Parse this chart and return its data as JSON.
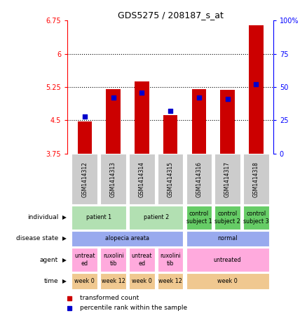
{
  "title": "GDS5275 / 208187_s_at",
  "samples": [
    "GSM1414312",
    "GSM1414313",
    "GSM1414314",
    "GSM1414315",
    "GSM1414316",
    "GSM1414317",
    "GSM1414318"
  ],
  "transformed_count": [
    4.47,
    5.21,
    5.38,
    4.62,
    5.21,
    5.19,
    6.65
  ],
  "percentile_rank": [
    28,
    42,
    46,
    32,
    42,
    41,
    52
  ],
  "ylim_left": [
    3.75,
    6.75
  ],
  "ylim_right": [
    0,
    100
  ],
  "yticks_left": [
    3.75,
    4.5,
    5.25,
    6.0,
    6.75
  ],
  "yticks_right": [
    0,
    25,
    50,
    75,
    100
  ],
  "ytick_labels_left": [
    "3.75",
    "4.5",
    "5.25",
    "6",
    "6.75"
  ],
  "ytick_labels_right": [
    "0",
    "25",
    "50",
    "75",
    "100%"
  ],
  "bar_color": "#cc0000",
  "blue_color": "#0000cc",
  "bar_bottom": 3.75,
  "dotted_ticks": [
    4.5,
    5.25,
    6.0
  ],
  "annotations": {
    "individual": {
      "label": "individual",
      "groups": [
        {
          "text": "patient 1",
          "cols": [
            0,
            1
          ],
          "color": "#b2e0b2"
        },
        {
          "text": "patient 2",
          "cols": [
            2,
            3
          ],
          "color": "#b2e0b2"
        },
        {
          "text": "control\nsubject 1",
          "cols": [
            4
          ],
          "color": "#66cc66"
        },
        {
          "text": "control\nsubject 2",
          "cols": [
            5
          ],
          "color": "#66cc66"
        },
        {
          "text": "control\nsubject 3",
          "cols": [
            6
          ],
          "color": "#66cc66"
        }
      ]
    },
    "disease_state": {
      "label": "disease state",
      "groups": [
        {
          "text": "alopecia areata",
          "cols": [
            0,
            1,
            2,
            3
          ],
          "color": "#99aaee"
        },
        {
          "text": "normal",
          "cols": [
            4,
            5,
            6
          ],
          "color": "#99aaee"
        }
      ]
    },
    "agent": {
      "label": "agent",
      "groups": [
        {
          "text": "untreat\ned",
          "cols": [
            0
          ],
          "color": "#ffaadd"
        },
        {
          "text": "ruxolini\ntib",
          "cols": [
            1
          ],
          "color": "#ffaadd"
        },
        {
          "text": "untreat\ned",
          "cols": [
            2
          ],
          "color": "#ffaadd"
        },
        {
          "text": "ruxolini\ntib",
          "cols": [
            3
          ],
          "color": "#ffaadd"
        },
        {
          "text": "untreated",
          "cols": [
            4,
            5,
            6
          ],
          "color": "#ffaadd"
        }
      ]
    },
    "time": {
      "label": "time",
      "groups": [
        {
          "text": "week 0",
          "cols": [
            0
          ],
          "color": "#f0c890"
        },
        {
          "text": "week 12",
          "cols": [
            1
          ],
          "color": "#f0c890"
        },
        {
          "text": "week 0",
          "cols": [
            2
          ],
          "color": "#f0c890"
        },
        {
          "text": "week 12",
          "cols": [
            3
          ],
          "color": "#f0c890"
        },
        {
          "text": "week 0",
          "cols": [
            4,
            5,
            6
          ],
          "color": "#f0c890"
        }
      ]
    }
  },
  "legend": [
    {
      "label": "transformed count",
      "color": "#cc0000"
    },
    {
      "label": "percentile rank within the sample",
      "color": "#0000cc"
    }
  ]
}
